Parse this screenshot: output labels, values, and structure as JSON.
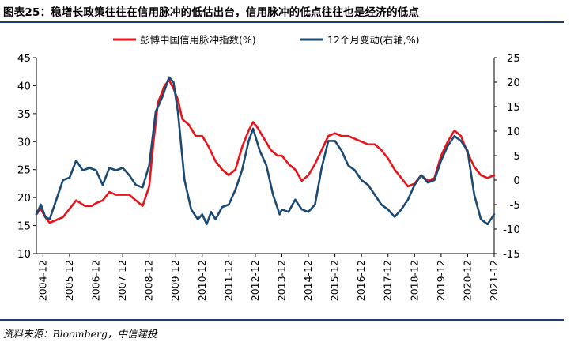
{
  "header": {
    "title": "图表25：稳增长政策往往在信用脉冲的低估出台，信用脉冲的低点往往也是经济的低点"
  },
  "footer": {
    "source": "资料来源：Bloomberg，中信建投"
  },
  "colors": {
    "series1": "#e8141c",
    "series2": "#1b4a73",
    "rule": "#1f3a6b"
  },
  "chart_data": {
    "type": "line",
    "title": "",
    "xlabel": "",
    "ylabel": "",
    "x_start": "2004-09",
    "x_end": "2021-12",
    "x_ticks": [
      "2004-12",
      "2005-12",
      "2006-12",
      "2007-12",
      "2008-12",
      "2009-12",
      "2010-12",
      "2011-12",
      "2012-12",
      "2013-12",
      "2014-12",
      "2015-12",
      "2016-12",
      "2017-12",
      "2018-12",
      "2019-12",
      "2020-12",
      "2021-12"
    ],
    "y_left": {
      "min": 10,
      "max": 45,
      "ticks": [
        10,
        15,
        20,
        25,
        30,
        35,
        40,
        45
      ]
    },
    "y_right": {
      "min": -15,
      "max": 25,
      "ticks": [
        -15,
        -10,
        -5,
        0,
        5,
        10,
        15,
        20,
        25
      ]
    },
    "grid": false,
    "legend_position": "top",
    "series": [
      {
        "name": "彭博中国信用脉冲指数(%)",
        "axis": "left",
        "color": "#e8141c",
        "points": [
          [
            "2004-09",
            17.0
          ],
          [
            "2004-11",
            18.0
          ],
          [
            "2005-01",
            16.5
          ],
          [
            "2005-03",
            15.5
          ],
          [
            "2005-06",
            16.0
          ],
          [
            "2005-09",
            16.5
          ],
          [
            "2005-12",
            18.0
          ],
          [
            "2006-03",
            19.5
          ],
          [
            "2006-05",
            19.0
          ],
          [
            "2006-07",
            18.5
          ],
          [
            "2006-10",
            18.5
          ],
          [
            "2006-12",
            19.0
          ],
          [
            "2007-03",
            19.5
          ],
          [
            "2007-06",
            21.0
          ],
          [
            "2007-09",
            20.5
          ],
          [
            "2007-12",
            20.5
          ],
          [
            "2008-03",
            20.5
          ],
          [
            "2008-06",
            19.5
          ],
          [
            "2008-09",
            18.5
          ],
          [
            "2008-12",
            22.0
          ],
          [
            "2009-02",
            30.0
          ],
          [
            "2009-04",
            37.0
          ],
          [
            "2009-07",
            40.0
          ],
          [
            "2009-09",
            41.0
          ],
          [
            "2009-11",
            39.5
          ],
          [
            "2010-01",
            37.5
          ],
          [
            "2010-03",
            34.0
          ],
          [
            "2010-06",
            33.0
          ],
          [
            "2010-09",
            31.0
          ],
          [
            "2010-12",
            31.0
          ],
          [
            "2011-03",
            29.0
          ],
          [
            "2011-06",
            26.5
          ],
          [
            "2011-09",
            25.0
          ],
          [
            "2011-12",
            24.0
          ],
          [
            "2012-03",
            25.0
          ],
          [
            "2012-06",
            29.0
          ],
          [
            "2012-09",
            32.0
          ],
          [
            "2012-11",
            33.5
          ],
          [
            "2013-01",
            32.5
          ],
          [
            "2013-04",
            30.5
          ],
          [
            "2013-07",
            28.5
          ],
          [
            "2013-10",
            27.5
          ],
          [
            "2013-12",
            27.5
          ],
          [
            "2014-03",
            26.0
          ],
          [
            "2014-06",
            25.0
          ],
          [
            "2014-09",
            23.0
          ],
          [
            "2014-12",
            24.0
          ],
          [
            "2015-03",
            26.0
          ],
          [
            "2015-06",
            28.5
          ],
          [
            "2015-09",
            31.0
          ],
          [
            "2015-12",
            31.5
          ],
          [
            "2016-03",
            31.0
          ],
          [
            "2016-06",
            31.0
          ],
          [
            "2016-09",
            30.5
          ],
          [
            "2016-12",
            30.0
          ],
          [
            "2017-03",
            29.5
          ],
          [
            "2017-06",
            29.5
          ],
          [
            "2017-09",
            28.5
          ],
          [
            "2017-12",
            27.0
          ],
          [
            "2018-03",
            25.0
          ],
          [
            "2018-06",
            23.5
          ],
          [
            "2018-09",
            22.0
          ],
          [
            "2018-12",
            22.5
          ],
          [
            "2019-03",
            24.0
          ],
          [
            "2019-06",
            23.0
          ],
          [
            "2019-09",
            23.5
          ],
          [
            "2019-12",
            27.5
          ],
          [
            "2020-03",
            30.0
          ],
          [
            "2020-06",
            32.0
          ],
          [
            "2020-09",
            31.0
          ],
          [
            "2020-12",
            28.0
          ],
          [
            "2021-03",
            25.5
          ],
          [
            "2021-06",
            24.0
          ],
          [
            "2021-09",
            23.5
          ],
          [
            "2021-12",
            24.0
          ]
        ]
      },
      {
        "name": "12个月变动(右轴,%)",
        "axis": "right",
        "color": "#1b4a73",
        "points": [
          [
            "2004-09",
            -7.0
          ],
          [
            "2004-11",
            -5.0
          ],
          [
            "2005-01",
            -7.5
          ],
          [
            "2005-03",
            -8.0
          ],
          [
            "2005-06",
            -4.0
          ],
          [
            "2005-09",
            0.0
          ],
          [
            "2005-12",
            0.5
          ],
          [
            "2006-03",
            4.0
          ],
          [
            "2006-06",
            2.0
          ],
          [
            "2006-09",
            2.5
          ],
          [
            "2006-12",
            2.0
          ],
          [
            "2007-03",
            -1.0
          ],
          [
            "2007-06",
            2.5
          ],
          [
            "2007-09",
            2.0
          ],
          [
            "2007-12",
            2.5
          ],
          [
            "2008-03",
            1.0
          ],
          [
            "2008-06",
            -1.0
          ],
          [
            "2008-09",
            -1.5
          ],
          [
            "2008-12",
            3.0
          ],
          [
            "2009-03",
            14.0
          ],
          [
            "2009-06",
            17.0
          ],
          [
            "2009-09",
            21.0
          ],
          [
            "2009-11",
            20.0
          ],
          [
            "2010-01",
            14.0
          ],
          [
            "2010-04",
            0.0
          ],
          [
            "2010-07",
            -6.0
          ],
          [
            "2010-10",
            -8.0
          ],
          [
            "2010-12",
            -7.0
          ],
          [
            "2011-02",
            -9.0
          ],
          [
            "2011-04",
            -6.5
          ],
          [
            "2011-06",
            -8.0
          ],
          [
            "2011-09",
            -5.5
          ],
          [
            "2011-12",
            -5.0
          ],
          [
            "2012-03",
            -2.0
          ],
          [
            "2012-06",
            2.0
          ],
          [
            "2012-09",
            8.0
          ],
          [
            "2012-11",
            10.5
          ],
          [
            "2013-02",
            6.0
          ],
          [
            "2013-05",
            3.0
          ],
          [
            "2013-08",
            -3.0
          ],
          [
            "2013-11",
            -7.0
          ],
          [
            "2013-12",
            -6.0
          ],
          [
            "2014-03",
            -6.5
          ],
          [
            "2014-06",
            -4.0
          ],
          [
            "2014-09",
            -6.0
          ],
          [
            "2014-12",
            -6.5
          ],
          [
            "2015-03",
            -5.0
          ],
          [
            "2015-06",
            2.5
          ],
          [
            "2015-09",
            8.0
          ],
          [
            "2015-12",
            8.0
          ],
          [
            "2016-03",
            6.0
          ],
          [
            "2016-06",
            3.0
          ],
          [
            "2016-09",
            2.0
          ],
          [
            "2016-12",
            0.0
          ],
          [
            "2017-03",
            -1.0
          ],
          [
            "2017-06",
            -3.0
          ],
          [
            "2017-09",
            -5.0
          ],
          [
            "2017-12",
            -6.0
          ],
          [
            "2018-03",
            -7.5
          ],
          [
            "2018-06",
            -6.0
          ],
          [
            "2018-09",
            -4.0
          ],
          [
            "2018-12",
            -1.0
          ],
          [
            "2019-03",
            1.0
          ],
          [
            "2019-06",
            -0.5
          ],
          [
            "2019-09",
            0.0
          ],
          [
            "2019-12",
            4.0
          ],
          [
            "2020-03",
            7.0
          ],
          [
            "2020-06",
            9.0
          ],
          [
            "2020-09",
            8.0
          ],
          [
            "2020-12",
            6.0
          ],
          [
            "2021-03",
            -3.0
          ],
          [
            "2021-06",
            -8.0
          ],
          [
            "2021-09",
            -9.0
          ],
          [
            "2021-12",
            -7.0
          ]
        ]
      }
    ]
  }
}
